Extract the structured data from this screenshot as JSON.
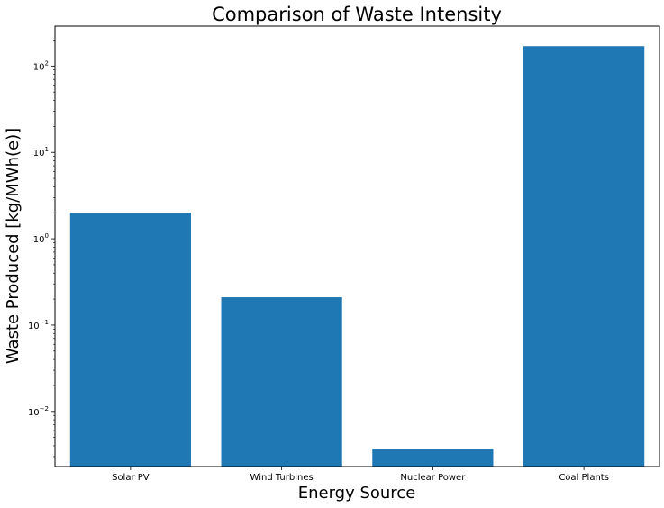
{
  "chart_data": {
    "type": "bar",
    "title": "Comparison of Waste Intensity",
    "xlabel": "Energy Source",
    "ylabel": "Waste Produced [kg/MWh(e)]",
    "categories": [
      "Solar PV",
      "Wind Turbines",
      "Nuclear Power",
      "Coal Plants"
    ],
    "values": [
      2.0,
      0.21,
      0.0037,
      170
    ],
    "yscale": "log",
    "ylim": [
      0.0023,
      290
    ],
    "ytick_labels": [
      {
        "base": "10",
        "exp": "−2"
      },
      {
        "base": "10",
        "exp": "−1"
      },
      {
        "base": "10",
        "exp": "0"
      },
      {
        "base": "10",
        "exp": "1"
      },
      {
        "base": "10",
        "exp": "2"
      }
    ],
    "bar_color": "#1f77b4",
    "grid": false,
    "legend": "none"
  }
}
